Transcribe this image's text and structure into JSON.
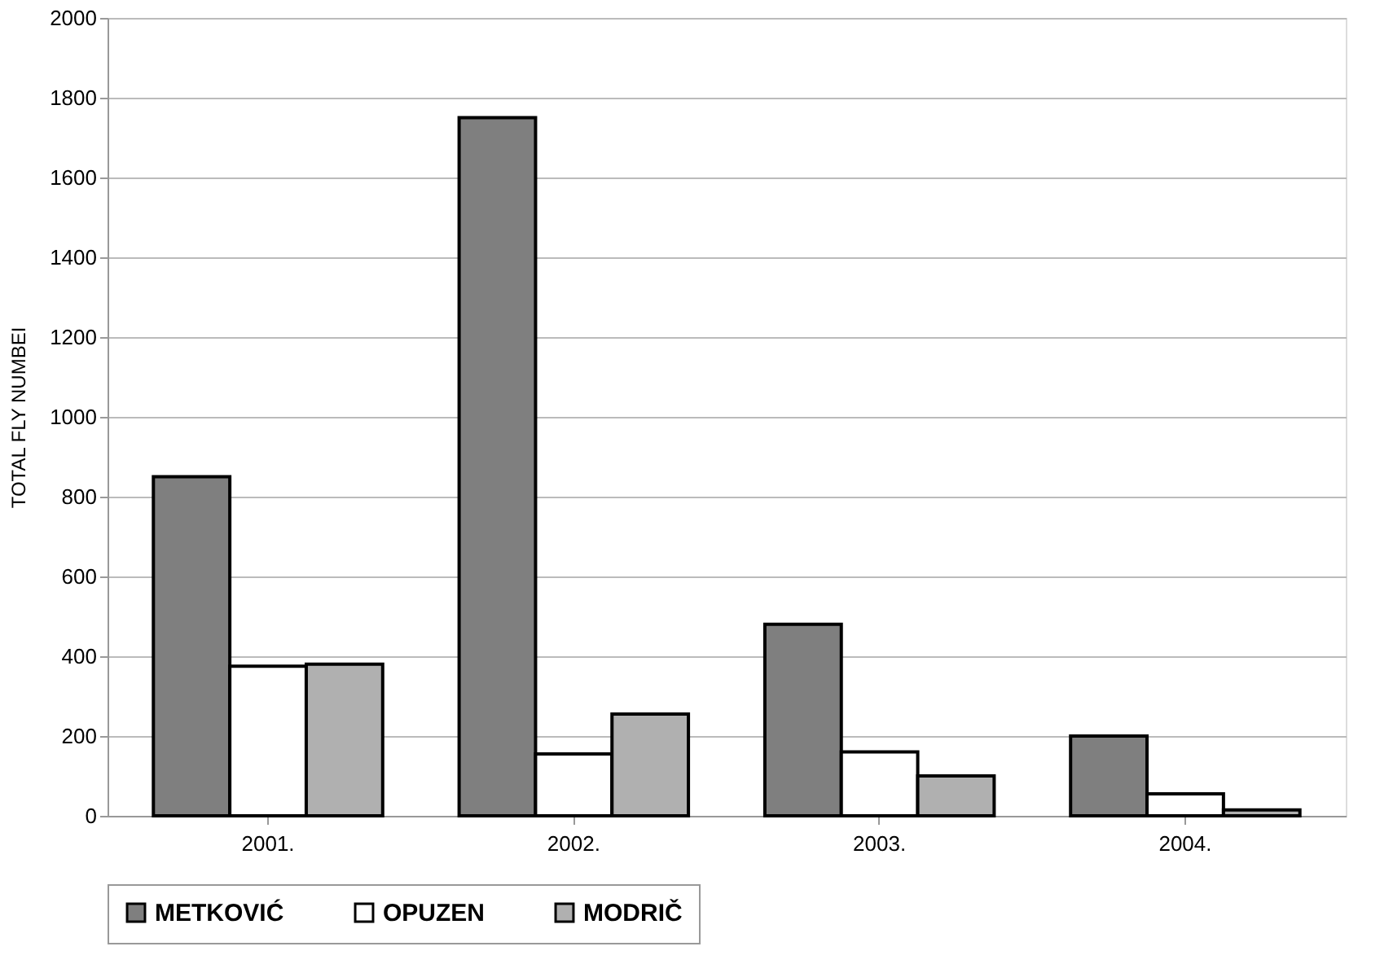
{
  "chart_data": {
    "type": "bar",
    "ylabel": "TOTAL FLY NUMBEI",
    "categories": [
      "2001.",
      "2002.",
      "2003.",
      "2004."
    ],
    "series": [
      {
        "name": "METKOVIĆ",
        "color": "#7f7f7f",
        "values": [
          850,
          1750,
          480,
          200
        ]
      },
      {
        "name": "OPUZEN",
        "color": "#ffffff",
        "values": [
          375,
          155,
          160,
          55
        ]
      },
      {
        "name": "MODRIČ",
        "color": "#b0b0b0",
        "values": [
          380,
          255,
          100,
          15
        ]
      }
    ],
    "ylim": [
      0,
      2000
    ],
    "yticks": [
      0,
      200,
      400,
      600,
      800,
      1000,
      1200,
      1400,
      1600,
      1800,
      2000
    ],
    "grid": "y",
    "legend": "bottom"
  }
}
